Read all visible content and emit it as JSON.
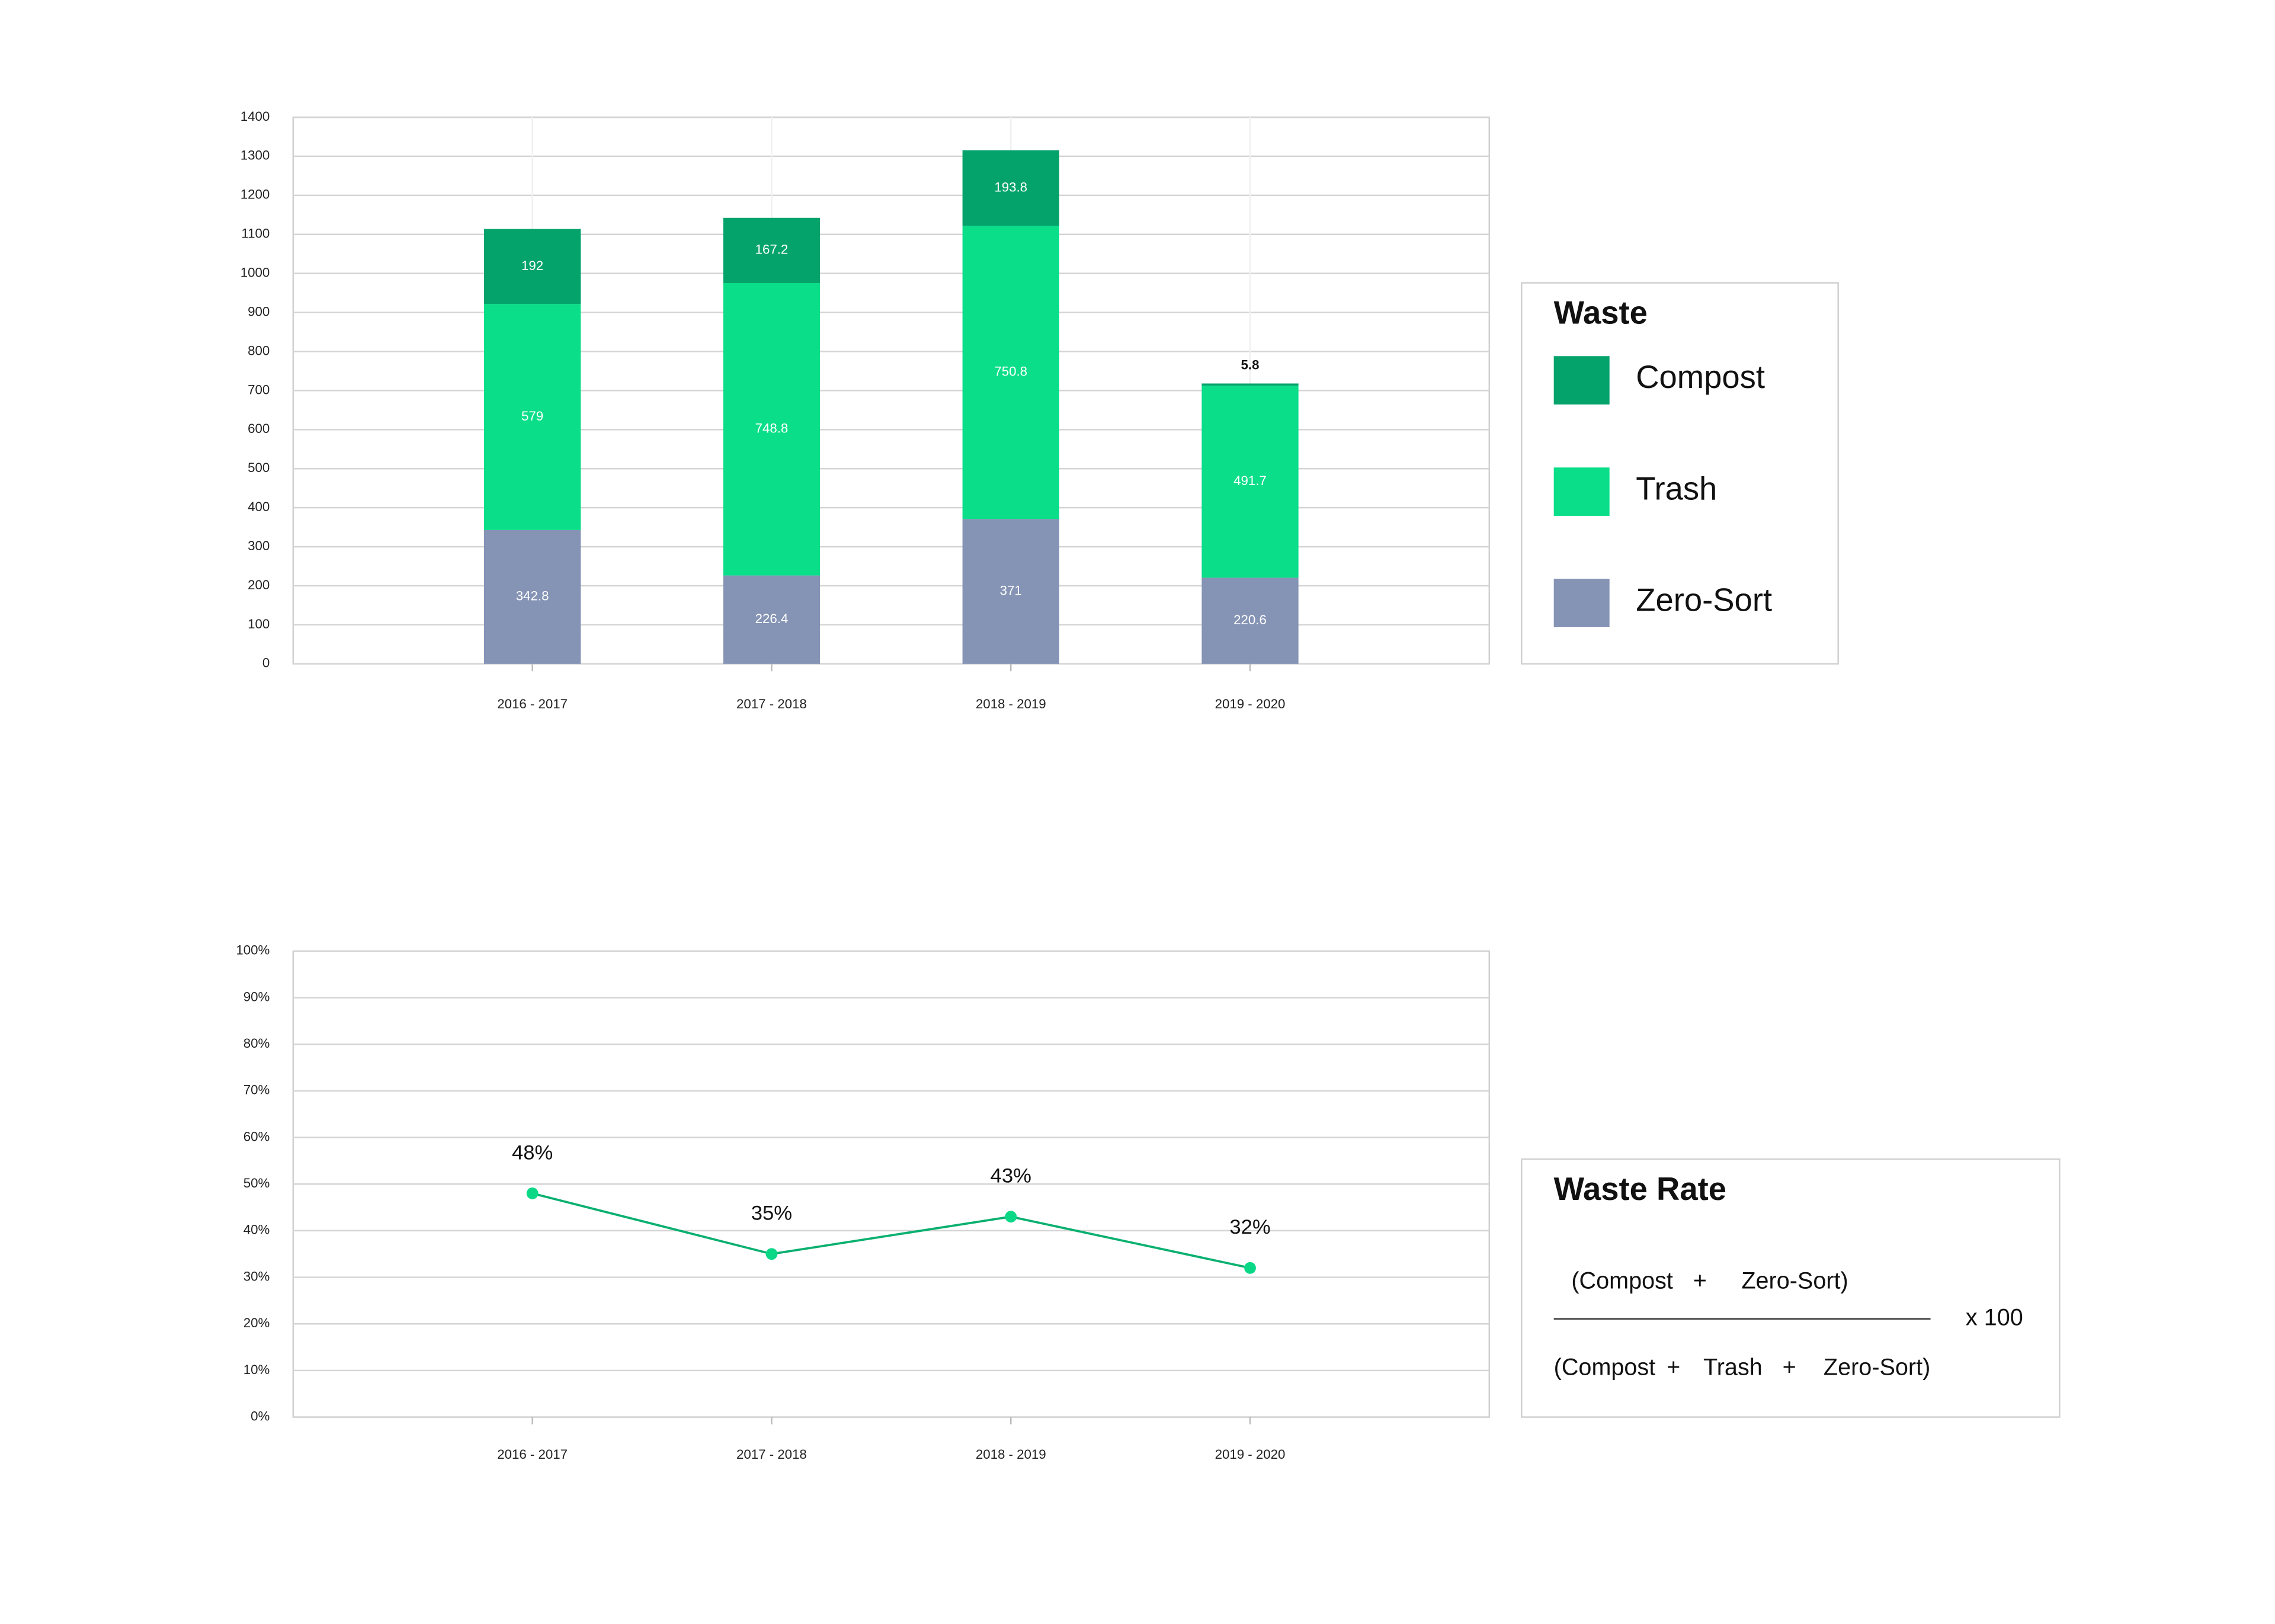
{
  "chart_data": [
    {
      "type": "stacked_bar",
      "categories": [
        "2016 - 2017",
        "2017 - 2018",
        "2018 - 2019",
        "2019 - 2020"
      ],
      "series": [
        {
          "name": "Zero-Sort",
          "color": "#8594b5",
          "values": [
            342.8,
            226.4,
            371,
            220.6
          ]
        },
        {
          "name": "Trash",
          "color": "#0ade89",
          "values": [
            579,
            748.8,
            750.8,
            491.7
          ]
        },
        {
          "name": "Compost",
          "color": "#05a36c",
          "values": [
            192,
            167.2,
            193.8,
            5.8
          ]
        }
      ],
      "ylim": [
        0,
        1400
      ],
      "yticks": [
        0,
        100,
        200,
        300,
        400,
        500,
        600,
        700,
        800,
        900,
        1000,
        1100,
        1200,
        1300,
        1400
      ],
      "grid": true,
      "legend_title": "Waste",
      "legend_position": "right"
    },
    {
      "type": "line",
      "categories": [
        "2016 - 2017",
        "2017 - 2018",
        "2018 - 2019",
        "2019 - 2020"
      ],
      "values": [
        48,
        35,
        43,
        32
      ],
      "value_labels": [
        "48%",
        "35%",
        "43%",
        "32%"
      ],
      "color": "#0ab070",
      "ylim": [
        0,
        100
      ],
      "yticks": [
        {
          "value": 0,
          "label": "0%"
        },
        {
          "value": 10,
          "label": "10%"
        },
        {
          "value": 20,
          "label": "20%"
        },
        {
          "value": 30,
          "label": "30%"
        },
        {
          "value": 40,
          "label": "40%"
        },
        {
          "value": 50,
          "label": "50%"
        },
        {
          "value": 60,
          "label": "60%"
        },
        {
          "value": 70,
          "label": "70%"
        },
        {
          "value": 80,
          "label": "80%"
        },
        {
          "value": 90,
          "label": "90%"
        },
        {
          "value": 100,
          "label": "100%"
        }
      ],
      "grid": true
    }
  ],
  "formula_box": {
    "title": "Waste Rate",
    "numerator": [
      "(Compost",
      "+",
      "Zero-Sort)"
    ],
    "denominator": [
      "(Compost",
      "+",
      "Trash",
      "+",
      "Zero-Sort)"
    ],
    "multiplier": "x 100"
  }
}
